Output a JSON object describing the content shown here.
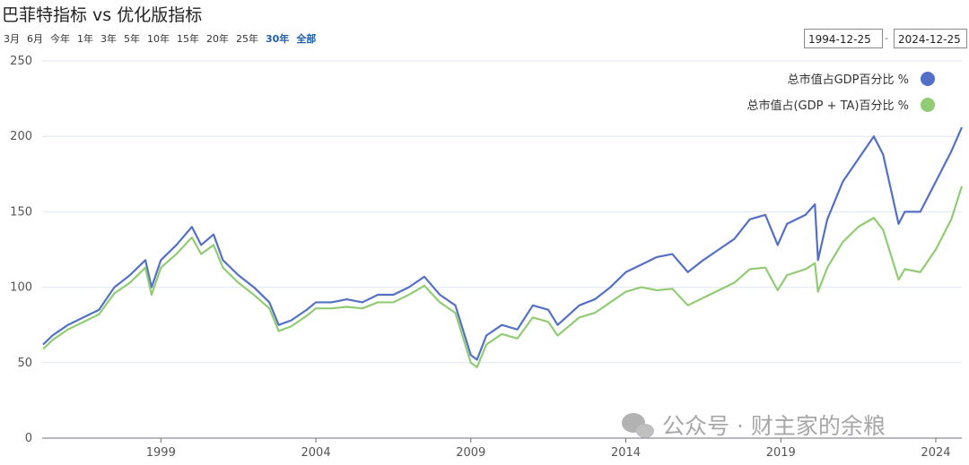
{
  "chart_data": {
    "type": "line",
    "title": "巴菲特指标 vs 优化版指标",
    "x": [
      1995.2,
      1995.5,
      1996,
      1996.5,
      1997,
      1997.5,
      1998,
      1998.5,
      1998.7,
      1999,
      1999.5,
      2000,
      2000.3,
      2000.7,
      2001,
      2001.5,
      2002,
      2002.5,
      2002.8,
      2003.2,
      2003.7,
      2004,
      2004.5,
      2005,
      2005.5,
      2006,
      2006.5,
      2007,
      2007.5,
      2008,
      2008.5,
      2009,
      2009.2,
      2009.5,
      2010,
      2010.5,
      2011,
      2011.5,
      2011.8,
      2012.5,
      2013,
      2013.5,
      2014,
      2014.5,
      2015,
      2015.5,
      2016,
      2016.5,
      2017,
      2017.5,
      2018,
      2018.5,
      2018.9,
      2019.2,
      2019.8,
      2020.1,
      2020.2,
      2020.5,
      2021,
      2021.5,
      2022,
      2022.3,
      2022.8,
      2023,
      2023.5,
      2024,
      2024.5,
      2024.84
    ],
    "series": [
      {
        "name": "总市值占GDP百分比 %",
        "color": "#5470c6",
        "values": [
          62,
          68,
          75,
          80,
          85,
          100,
          108,
          118,
          100,
          118,
          128,
          140,
          128,
          135,
          118,
          108,
          100,
          90,
          75,
          78,
          85,
          90,
          90,
          92,
          90,
          95,
          95,
          100,
          107,
          95,
          88,
          55,
          52,
          68,
          75,
          72,
          88,
          85,
          75,
          88,
          92,
          100,
          110,
          115,
          120,
          122,
          110,
          118,
          125,
          132,
          145,
          148,
          128,
          142,
          148,
          155,
          118,
          145,
          170,
          185,
          200,
          188,
          142,
          150,
          150,
          170,
          190,
          206
        ]
      },
      {
        "name": "总市值占(GDP + TA)百分比 %",
        "color": "#91cc75",
        "values": [
          59,
          65,
          72,
          77,
          82,
          96,
          103,
          113,
          95,
          113,
          122,
          133,
          122,
          128,
          113,
          103,
          95,
          86,
          71,
          74,
          81,
          86,
          86,
          87,
          86,
          90,
          90,
          95,
          101,
          90,
          83,
          50,
          47,
          62,
          69,
          66,
          80,
          77,
          68,
          80,
          83,
          90,
          97,
          100,
          98,
          99,
          88,
          93,
          98,
          103,
          112,
          113,
          98,
          108,
          112,
          116,
          97,
          113,
          130,
          140,
          146,
          138,
          105,
          112,
          110,
          125,
          145,
          167
        ]
      }
    ],
    "xlim": [
      1995.17,
      2024.84
    ],
    "xticks": [
      1999,
      2004,
      2009,
      2014,
      2019,
      2024
    ],
    "ylim": [
      0,
      250
    ],
    "yticks": [
      0,
      50,
      100,
      150,
      200,
      250
    ],
    "grid": true,
    "legend": "top-right"
  },
  "range_buttons": [
    "3月",
    "6月",
    "今年",
    "1年",
    "3年",
    "5年",
    "10年",
    "15年",
    "20年",
    "25年",
    "30年",
    "全部"
  ],
  "selected_buttons": [
    10,
    11
  ],
  "date_from": "1994-12-25",
  "date_separator": "-",
  "date_to": "2024-12-25",
  "watermark": "公众号 · 财主家的余粮"
}
